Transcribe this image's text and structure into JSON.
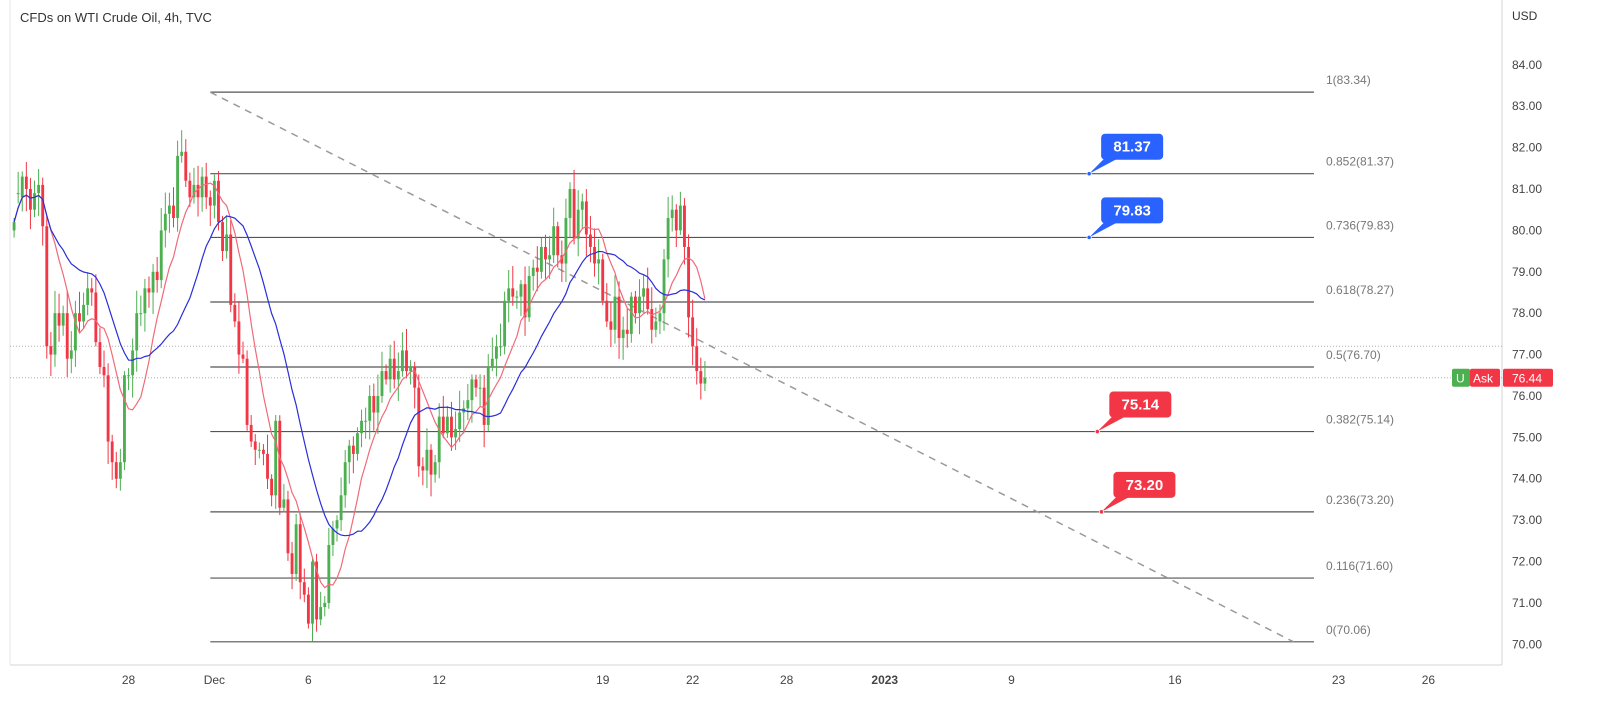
{
  "header": {
    "title": "CFDs on WTI Crude Oil, 4h, TVC"
  },
  "colors": {
    "up": "#4caf50",
    "down": "#f23645",
    "ma_fast": "#f06a78",
    "ma_slow": "#2a2ed9",
    "fib_line": "#555555",
    "trendline": "#9a9a9a",
    "blue_badge": "#2962ff",
    "red_badge": "#f23645",
    "grid_text": "#444444"
  },
  "chart_data": {
    "type": "candlestick",
    "title": "CFDs on WTI Crude Oil, 4h, TVC",
    "currency": "USD",
    "ylim": [
      69.5,
      84.6
    ],
    "y_ticks": [
      "70.00",
      "71.00",
      "72.00",
      "73.00",
      "74.00",
      "75.00",
      "76.00",
      "77.00",
      "78.00",
      "79.00",
      "80.00",
      "81.00",
      "82.00",
      "83.00",
      "84.00"
    ],
    "x_ticks": [
      {
        "label": "28",
        "bar": 28
      },
      {
        "label": "Dec",
        "bar": 49,
        "bold": false
      },
      {
        "label": "6",
        "bar": 72
      },
      {
        "label": "12",
        "bar": 104
      },
      {
        "label": "19",
        "bar": 144
      },
      {
        "label": "22",
        "bar": 166
      },
      {
        "label": "28",
        "bar": 189
      },
      {
        "label": "2023",
        "bar": 213,
        "bold": true
      },
      {
        "label": "9",
        "bar": 244
      },
      {
        "label": "16",
        "bar": 284
      },
      {
        "label": "23",
        "bar": 324
      },
      {
        "label": "26",
        "bar": 346
      }
    ],
    "bar_range": [
      -1,
      364
    ],
    "current_price": {
      "label": "Ask",
      "value": "76.44",
      "prefix": "U"
    },
    "fib_levels": [
      {
        "label": "1(83.34)",
        "value": 83.34
      },
      {
        "label": "0.852(81.37)",
        "value": 81.37
      },
      {
        "label": "0.736(79.83)",
        "value": 79.83
      },
      {
        "label": "0.618(78.27)",
        "value": 78.27
      },
      {
        "label": "0.5(76.70)",
        "value": 76.7
      },
      {
        "label": "0.382(75.14)",
        "value": 75.14
      },
      {
        "label": "0.236(73.20)",
        "value": 73.2
      },
      {
        "label": "0.116(71.60)",
        "value": 71.6
      },
      {
        "label": "0(70.06)",
        "value": 70.06
      }
    ],
    "fib_range_bars": [
      48,
      318
    ],
    "trendline": {
      "from": {
        "bar": 48,
        "value": 83.34
      },
      "to": {
        "bar": 313,
        "value": 70.06
      }
    },
    "callouts": [
      {
        "text": "81.37",
        "value": 81.37,
        "bar": 263,
        "color": "blue"
      },
      {
        "text": "79.83",
        "value": 79.83,
        "bar": 263,
        "color": "blue"
      },
      {
        "text": "75.14",
        "value": 75.14,
        "bar": 265,
        "color": "red"
      },
      {
        "text": "73.20",
        "value": 73.2,
        "bar": 266,
        "color": "red"
      }
    ],
    "series": [
      {
        "name": "Price",
        "o": [
          80.0,
          80.9,
          80.8,
          81.3,
          81.0,
          80.5,
          80.9,
          81.1,
          80.1,
          77.2,
          77.0,
          78.0,
          77.7,
          78.0,
          76.9,
          77.1,
          78.0,
          77.8,
          78.2,
          78.6,
          78.5,
          77.3,
          76.7,
          76.5,
          74.9,
          74.4,
          74.0,
          74.4,
          76.5,
          76.5,
          77.1,
          78.0,
          78.0,
          78.6,
          78.5,
          79.0,
          78.8,
          80.0,
          80.4,
          80.6,
          80.3,
          81.8,
          81.9,
          81.2,
          80.8,
          81.1,
          80.8,
          81.3,
          80.8,
          80.6,
          81.2,
          80.2,
          79.5,
          79.9,
          78.2,
          77.8,
          77.0,
          76.9,
          75.3,
          74.9,
          74.7,
          74.7,
          74.6,
          74.0,
          73.6,
          75.4,
          73.3,
          73.5,
          72.2,
          71.7,
          72.9,
          71.5,
          71.2,
          70.5,
          72.0,
          70.6,
          70.9,
          71.0,
          72.4,
          72.8,
          73.0,
          73.6,
          74.4,
          74.8,
          74.6,
          75.1,
          75.4,
          75.4,
          76.0,
          75.6,
          76.0,
          76.6,
          76.4,
          76.9,
          76.4,
          76.6,
          77.1,
          76.6,
          76.7,
          76.2,
          74.3,
          74.2,
          74.7,
          74.1,
          74.4,
          75.5,
          75.1,
          75.5,
          75.0,
          75.2,
          75.6,
          75.7,
          75.9,
          76.4,
          76.2,
          76.2,
          75.3,
          76.7,
          76.9,
          77.2,
          77.2,
          78.3,
          78.6,
          78.4,
          78.4,
          78.7,
          77.9,
          78.9,
          79.1,
          79.0,
          79.6,
          79.3,
          79.4,
          80.1,
          79.4,
          79.2,
          80.3,
          81.0,
          79.8,
          80.5,
          80.7,
          79.9,
          79.6,
          79.2,
          79.3,
          78.3,
          77.8,
          77.6,
          78.4,
          77.4,
          77.6,
          77.5,
          78.4,
          78.0,
          78.4,
          78.6,
          78.1,
          77.6,
          77.8,
          78.0,
          79.3,
          80.3,
          80.5,
          80.0,
          80.6,
          79.6,
          77.9,
          77.2,
          76.6,
          76.3
        ],
        "c": [
          80.2,
          80.9,
          81.3,
          81.0,
          80.5,
          80.9,
          81.1,
          80.1,
          77.2,
          77.0,
          78.0,
          77.7,
          78.0,
          76.9,
          77.1,
          78.0,
          77.8,
          78.2,
          78.6,
          78.5,
          77.3,
          76.7,
          76.5,
          74.9,
          74.4,
          74.0,
          74.4,
          76.5,
          76.5,
          77.1,
          78.0,
          78.0,
          78.6,
          78.5,
          79.0,
          78.8,
          80.0,
          80.4,
          80.6,
          80.3,
          81.8,
          81.9,
          81.2,
          80.8,
          81.1,
          80.8,
          81.3,
          80.8,
          80.6,
          81.2,
          80.2,
          79.5,
          79.9,
          78.2,
          77.8,
          77.0,
          76.9,
          75.3,
          74.9,
          74.7,
          74.7,
          74.6,
          74.0,
          73.6,
          75.4,
          73.3,
          73.5,
          72.2,
          71.7,
          72.9,
          71.5,
          71.2,
          70.5,
          72.0,
          70.6,
          70.9,
          71.0,
          72.4,
          72.8,
          73.0,
          73.6,
          74.4,
          74.8,
          74.6,
          75.1,
          75.4,
          75.4,
          76.0,
          75.6,
          76.0,
          76.6,
          76.4,
          76.9,
          76.4,
          76.6,
          77.1,
          76.6,
          76.7,
          76.2,
          74.3,
          74.2,
          74.7,
          74.1,
          74.4,
          75.5,
          75.1,
          75.5,
          75.0,
          75.2,
          75.6,
          75.7,
          75.9,
          76.4,
          76.2,
          76.2,
          75.3,
          76.7,
          76.9,
          77.2,
          77.2,
          78.3,
          78.6,
          78.4,
          78.4,
          78.7,
          77.9,
          78.9,
          79.1,
          79.0,
          79.6,
          79.3,
          79.4,
          80.1,
          79.4,
          79.2,
          80.3,
          81.0,
          79.8,
          80.5,
          80.7,
          79.9,
          79.6,
          79.2,
          79.3,
          78.3,
          77.8,
          77.6,
          78.4,
          77.4,
          77.6,
          77.5,
          78.4,
          78.0,
          78.4,
          78.6,
          78.1,
          77.6,
          77.8,
          78.0,
          79.3,
          80.3,
          80.5,
          80.0,
          80.6,
          79.6,
          77.9,
          77.2,
          76.6,
          76.3,
          76.44
        ]
      },
      {
        "name": "MA fast"
      },
      {
        "name": "MA slow"
      }
    ]
  }
}
